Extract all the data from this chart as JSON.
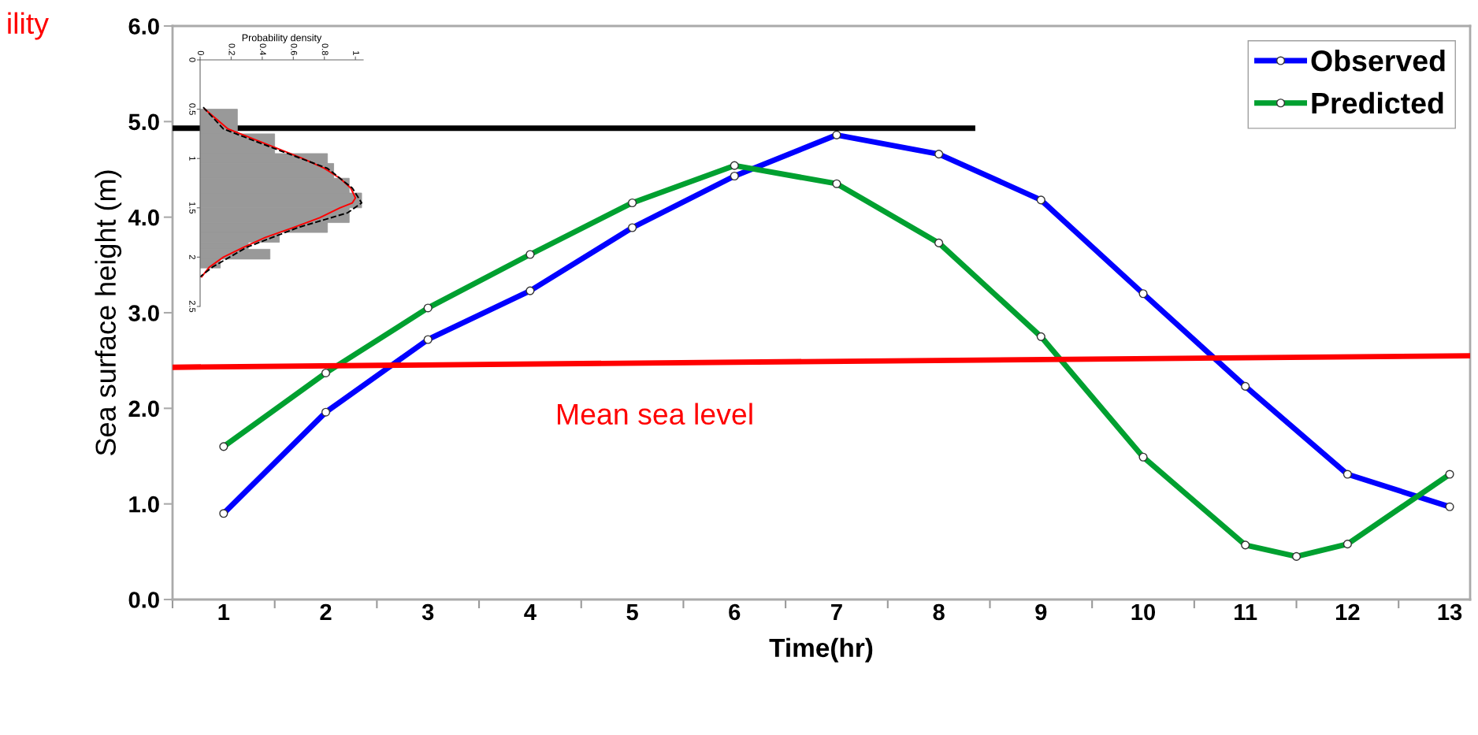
{
  "chart_data": [
    {
      "type": "line",
      "xlabel": "Time(hr)",
      "ylabel": "Sea surface height (m)",
      "xlim": [
        0.5,
        13.2
      ],
      "xticks": [
        {
          "value": 0.5,
          "label": null
        },
        {
          "value": 1,
          "label": "1"
        },
        {
          "value": 1.5,
          "label": null
        },
        {
          "value": 2,
          "label": "2"
        },
        {
          "value": 2.5,
          "label": null
        },
        {
          "value": 3,
          "label": "3"
        },
        {
          "value": 3.5,
          "label": null
        },
        {
          "value": 4,
          "label": "4"
        },
        {
          "value": 4.5,
          "label": null
        },
        {
          "value": 5,
          "label": "5"
        },
        {
          "value": 5.5,
          "label": null
        },
        {
          "value": 6,
          "label": "6"
        },
        {
          "value": 6.5,
          "label": null
        },
        {
          "value": 7,
          "label": "7"
        },
        {
          "value": 7.5,
          "label": null
        },
        {
          "value": 8,
          "label": "8"
        },
        {
          "value": 8.5,
          "label": null
        },
        {
          "value": 9,
          "label": "9"
        },
        {
          "value": 9.5,
          "label": null
        },
        {
          "value": 10,
          "label": "10"
        },
        {
          "value": 10.5,
          "label": null
        },
        {
          "value": 11,
          "label": "11"
        },
        {
          "value": 11.5,
          "label": null
        },
        {
          "value": 12,
          "label": "12"
        },
        {
          "value": 12.5,
          "label": null
        },
        {
          "value": 13,
          "label": "13"
        }
      ],
      "ylim": [
        0,
        6
      ],
      "yticks": [
        {
          "value": 0,
          "label": "0.0"
        },
        {
          "value": 1,
          "label": "1.0"
        },
        {
          "value": 2,
          "label": "2.0"
        },
        {
          "value": 3,
          "label": "3.0"
        },
        {
          "value": 4,
          "label": "4.0"
        },
        {
          "value": 5,
          "label": "5.0"
        },
        {
          "value": 6,
          "label": "6.0"
        }
      ],
      "grid": false,
      "legend": "top right",
      "marker": "circle",
      "line_style": "solid",
      "annotations": [
        "Mean sea level",
        "ility"
      ],
      "series": [
        {
          "name": "Observed",
          "color": "#0000ff",
          "x": [
            1,
            2,
            3,
            4,
            5,
            6,
            7,
            8,
            9,
            10,
            11,
            12,
            13
          ],
          "values": [
            0.9,
            1.96,
            2.72,
            3.23,
            3.89,
            4.43,
            4.86,
            4.66,
            4.18,
            3.2,
            2.23,
            1.31,
            0.97
          ]
        },
        {
          "name": "Predicted",
          "color": "#00a030",
          "x": [
            1,
            2,
            3,
            4,
            5,
            6,
            7,
            8,
            9,
            10,
            11,
            11.5,
            12,
            13
          ],
          "values": [
            1.6,
            2.37,
            3.05,
            3.61,
            4.15,
            4.54,
            4.35,
            3.73,
            2.75,
            1.49,
            0.57,
            0.45,
            0.58,
            1.31
          ]
        },
        {
          "color": "#000000",
          "marker": "none",
          "x": [
            0.5,
            8.33
          ],
          "values": [
            4.93,
            4.93
          ]
        },
        {
          "color": "#ff0000",
          "marker": "none",
          "x": [
            0.5,
            13.2
          ],
          "values": [
            2.43,
            2.55
          ]
        }
      ]
    },
    {
      "type": "histogram",
      "orientation": "horizontal",
      "xlabel": "Probability density",
      "xlim": [
        0,
        1.05
      ],
      "xticks": [
        {
          "value": 0,
          "label": "0"
        },
        {
          "value": 0.2,
          "label": "0.2"
        },
        {
          "value": 0.4,
          "label": "0.4"
        },
        {
          "value": 0.6,
          "label": "0.6"
        },
        {
          "value": 0.8,
          "label": "0.8"
        },
        {
          "value": 1,
          "label": "1"
        }
      ],
      "ylim": [
        2.5,
        0
      ],
      "yticks": [
        {
          "value": 0,
          "label": "0"
        },
        {
          "value": 0.5,
          "label": "0.5"
        },
        {
          "value": 1,
          "label": "1"
        },
        {
          "value": 1.5,
          "label": "1.5"
        },
        {
          "value": 2,
          "label": "2"
        },
        {
          "value": 2.5,
          "label": "2.5"
        }
      ],
      "bins": [
        0.5,
        0.75,
        0.95,
        1.05,
        1.2,
        1.35,
        1.5,
        1.65,
        1.75,
        1.85,
        1.92,
        2.02,
        2.11
      ],
      "values": [
        0.24,
        0.48,
        0.82,
        0.86,
        0.96,
        1.04,
        0.96,
        0.82,
        0.51,
        0.31,
        0.45,
        0.13
      ],
      "color": "#999999",
      "series": [
        {
          "type": "line",
          "color": "#ff0000",
          "line_style": "solid",
          "x": [
            0.5,
            0.7,
            0.9,
            1.0,
            1.1,
            1.2,
            1.3,
            1.4,
            1.45,
            1.5,
            1.6,
            1.7,
            1.8,
            1.9,
            2.0,
            2.1,
            2.2
          ],
          "values": [
            0.03,
            0.18,
            0.5,
            0.66,
            0.8,
            0.9,
            0.97,
            1.0,
            0.98,
            0.9,
            0.77,
            0.6,
            0.42,
            0.28,
            0.15,
            0.06,
            0.01
          ]
        },
        {
          "type": "line",
          "color": "#000000",
          "line_style": "dashed",
          "x": [
            0.48,
            0.7,
            0.9,
            1.1,
            1.3,
            1.45,
            1.55,
            1.7,
            1.9,
            2.1,
            2.2
          ],
          "values": [
            0.02,
            0.15,
            0.48,
            0.82,
            0.98,
            1.04,
            0.95,
            0.63,
            0.3,
            0.08,
            0.0
          ]
        }
      ]
    }
  ]
}
